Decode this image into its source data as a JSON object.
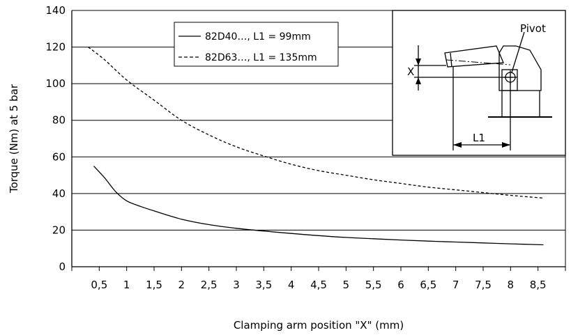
{
  "chart_data": {
    "type": "line",
    "xlabel": "Clamping arm position \"X\" (mm)",
    "ylabel": "Torque (Nm) at 5 bar",
    "x_ticks": [
      "0,5",
      "1",
      "1,5",
      "2",
      "2,5",
      "3",
      "3,5",
      "4",
      "4,5",
      "5",
      "5,5",
      "6",
      "6,5",
      "7",
      "7,5",
      "8",
      "8,5"
    ],
    "y_ticks": [
      "0",
      "20",
      "40",
      "60",
      "80",
      "100",
      "120",
      "140"
    ],
    "xlim": [
      0,
      9
    ],
    "ylim": [
      0,
      140
    ],
    "grid": "horizontal",
    "legend_position": "top-center",
    "series": [
      {
        "name": "82D40…, L1 = 99mm",
        "style": "solid",
        "x": [
          0.4,
          0.6,
          0.8,
          1.0,
          1.25,
          1.5,
          2.0,
          2.5,
          3.0,
          3.5,
          4.0,
          4.5,
          5.0,
          5.5,
          6.0,
          6.5,
          7.0,
          7.5,
          8.0,
          8.6
        ],
        "y": [
          55,
          48.5,
          41,
          36,
          33,
          30.5,
          26,
          23,
          21,
          19.5,
          18.2,
          17,
          16,
          15.3,
          14.6,
          14,
          13.5,
          13,
          12.5,
          12
        ]
      },
      {
        "name": "82D63…, L1 = 135mm",
        "style": "dashed",
        "x": [
          0.3,
          0.6,
          1.0,
          1.5,
          2.0,
          2.5,
          3.0,
          3.5,
          4.0,
          4.5,
          5.0,
          5.5,
          6.0,
          6.5,
          7.0,
          7.5,
          8.0,
          8.6
        ],
        "y": [
          120,
          113,
          102,
          91,
          80,
          72,
          65.5,
          60.5,
          56,
          52.5,
          50,
          47.5,
          45.5,
          43.5,
          42,
          40.5,
          39,
          37.5
        ]
      }
    ]
  },
  "inset": {
    "pivot_label": "Pivot",
    "x_label": "X",
    "l1_label": "L1"
  }
}
